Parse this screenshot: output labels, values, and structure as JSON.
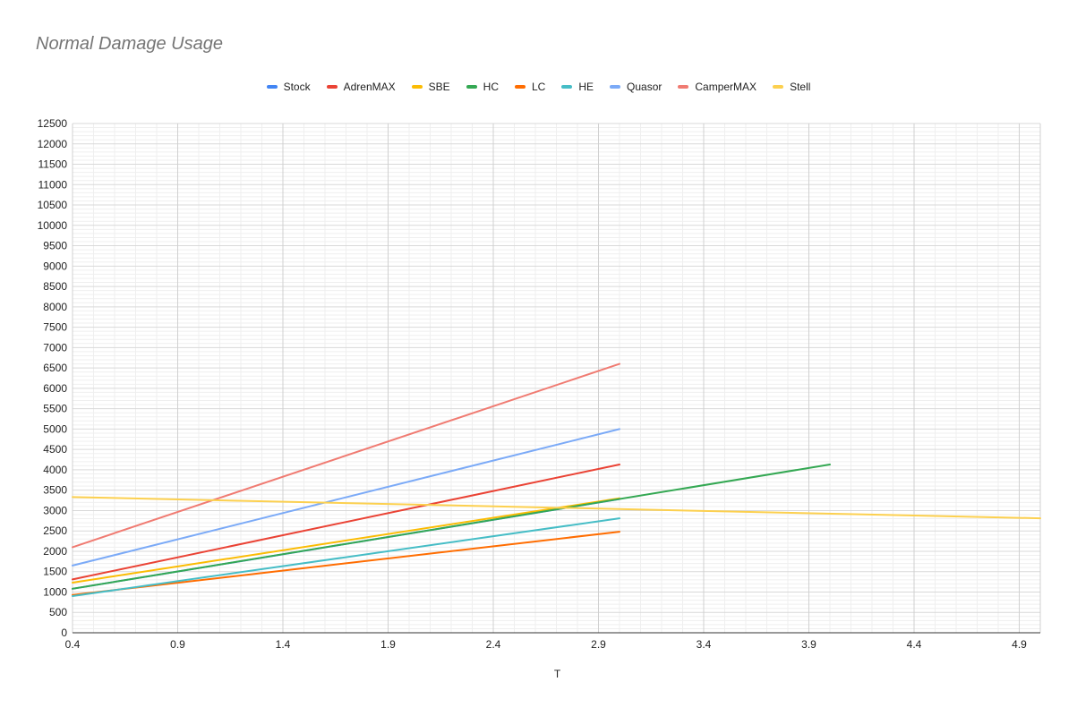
{
  "chart_data": {
    "type": "line",
    "title": "Normal Damage Usage",
    "xlabel": "T",
    "ylabel": "",
    "xlim": [
      0.4,
      5.0
    ],
    "ylim": [
      0,
      12500
    ],
    "x_ticks": [
      0.4,
      0.9,
      1.4,
      1.9,
      2.4,
      2.9,
      3.4,
      3.9,
      4.4,
      4.9
    ],
    "x_tick_labels": [
      "0.4",
      "0.9",
      "1.4",
      "1.9",
      "2.4",
      "2.9",
      "3.4",
      "3.9",
      "4.4",
      "4.9"
    ],
    "y_ticks": [
      0,
      500,
      1000,
      1500,
      2000,
      2500,
      3000,
      3500,
      4000,
      4500,
      5000,
      5500,
      6000,
      6500,
      7000,
      7500,
      8000,
      8500,
      9000,
      9500,
      10000,
      10500,
      11000,
      11500,
      12000,
      12500
    ],
    "y_tick_labels": [
      "0",
      "500",
      "1000",
      "1500",
      "2000",
      "2500",
      "3000",
      "3500",
      "4000",
      "4500",
      "5000",
      "5500",
      "6000",
      "6500",
      "7000",
      "7500",
      "8000",
      "8500",
      "9000",
      "9500",
      "10000",
      "10500",
      "11000",
      "11500",
      "12000",
      "12500"
    ],
    "grid": true,
    "legend_position": "top",
    "series": [
      {
        "name": "Stock",
        "color": "#4285f4",
        "x": [
          0.4,
          3.0
        ],
        "y": [
          1080,
          3280
        ]
      },
      {
        "name": "AdrenMAX",
        "color": "#ea4335",
        "x": [
          0.4,
          3.0
        ],
        "y": [
          1310,
          4130
        ]
      },
      {
        "name": "SBE",
        "color": "#fbbc04",
        "x": [
          0.4,
          3.0
        ],
        "y": [
          1230,
          3300
        ]
      },
      {
        "name": "HC",
        "color": "#34a853",
        "x": [
          0.4,
          4.0
        ],
        "y": [
          1080,
          4130
        ]
      },
      {
        "name": "LC",
        "color": "#ff6d01",
        "x": [
          0.4,
          3.0
        ],
        "y": [
          930,
          2480
        ]
      },
      {
        "name": "HE",
        "color": "#46bdc6",
        "x": [
          0.4,
          3.0
        ],
        "y": [
          900,
          2810
        ]
      },
      {
        "name": "Quasor",
        "color": "#7baaf7",
        "x": [
          0.4,
          3.0
        ],
        "y": [
          1650,
          5000
        ]
      },
      {
        "name": "CamperMAX",
        "color": "#f07b72",
        "x": [
          0.4,
          3.0
        ],
        "y": [
          2100,
          6600
        ]
      },
      {
        "name": "Stell",
        "color": "#fcd04f",
        "x": [
          0.4,
          5.0
        ],
        "y": [
          3330,
          2810
        ]
      }
    ]
  }
}
